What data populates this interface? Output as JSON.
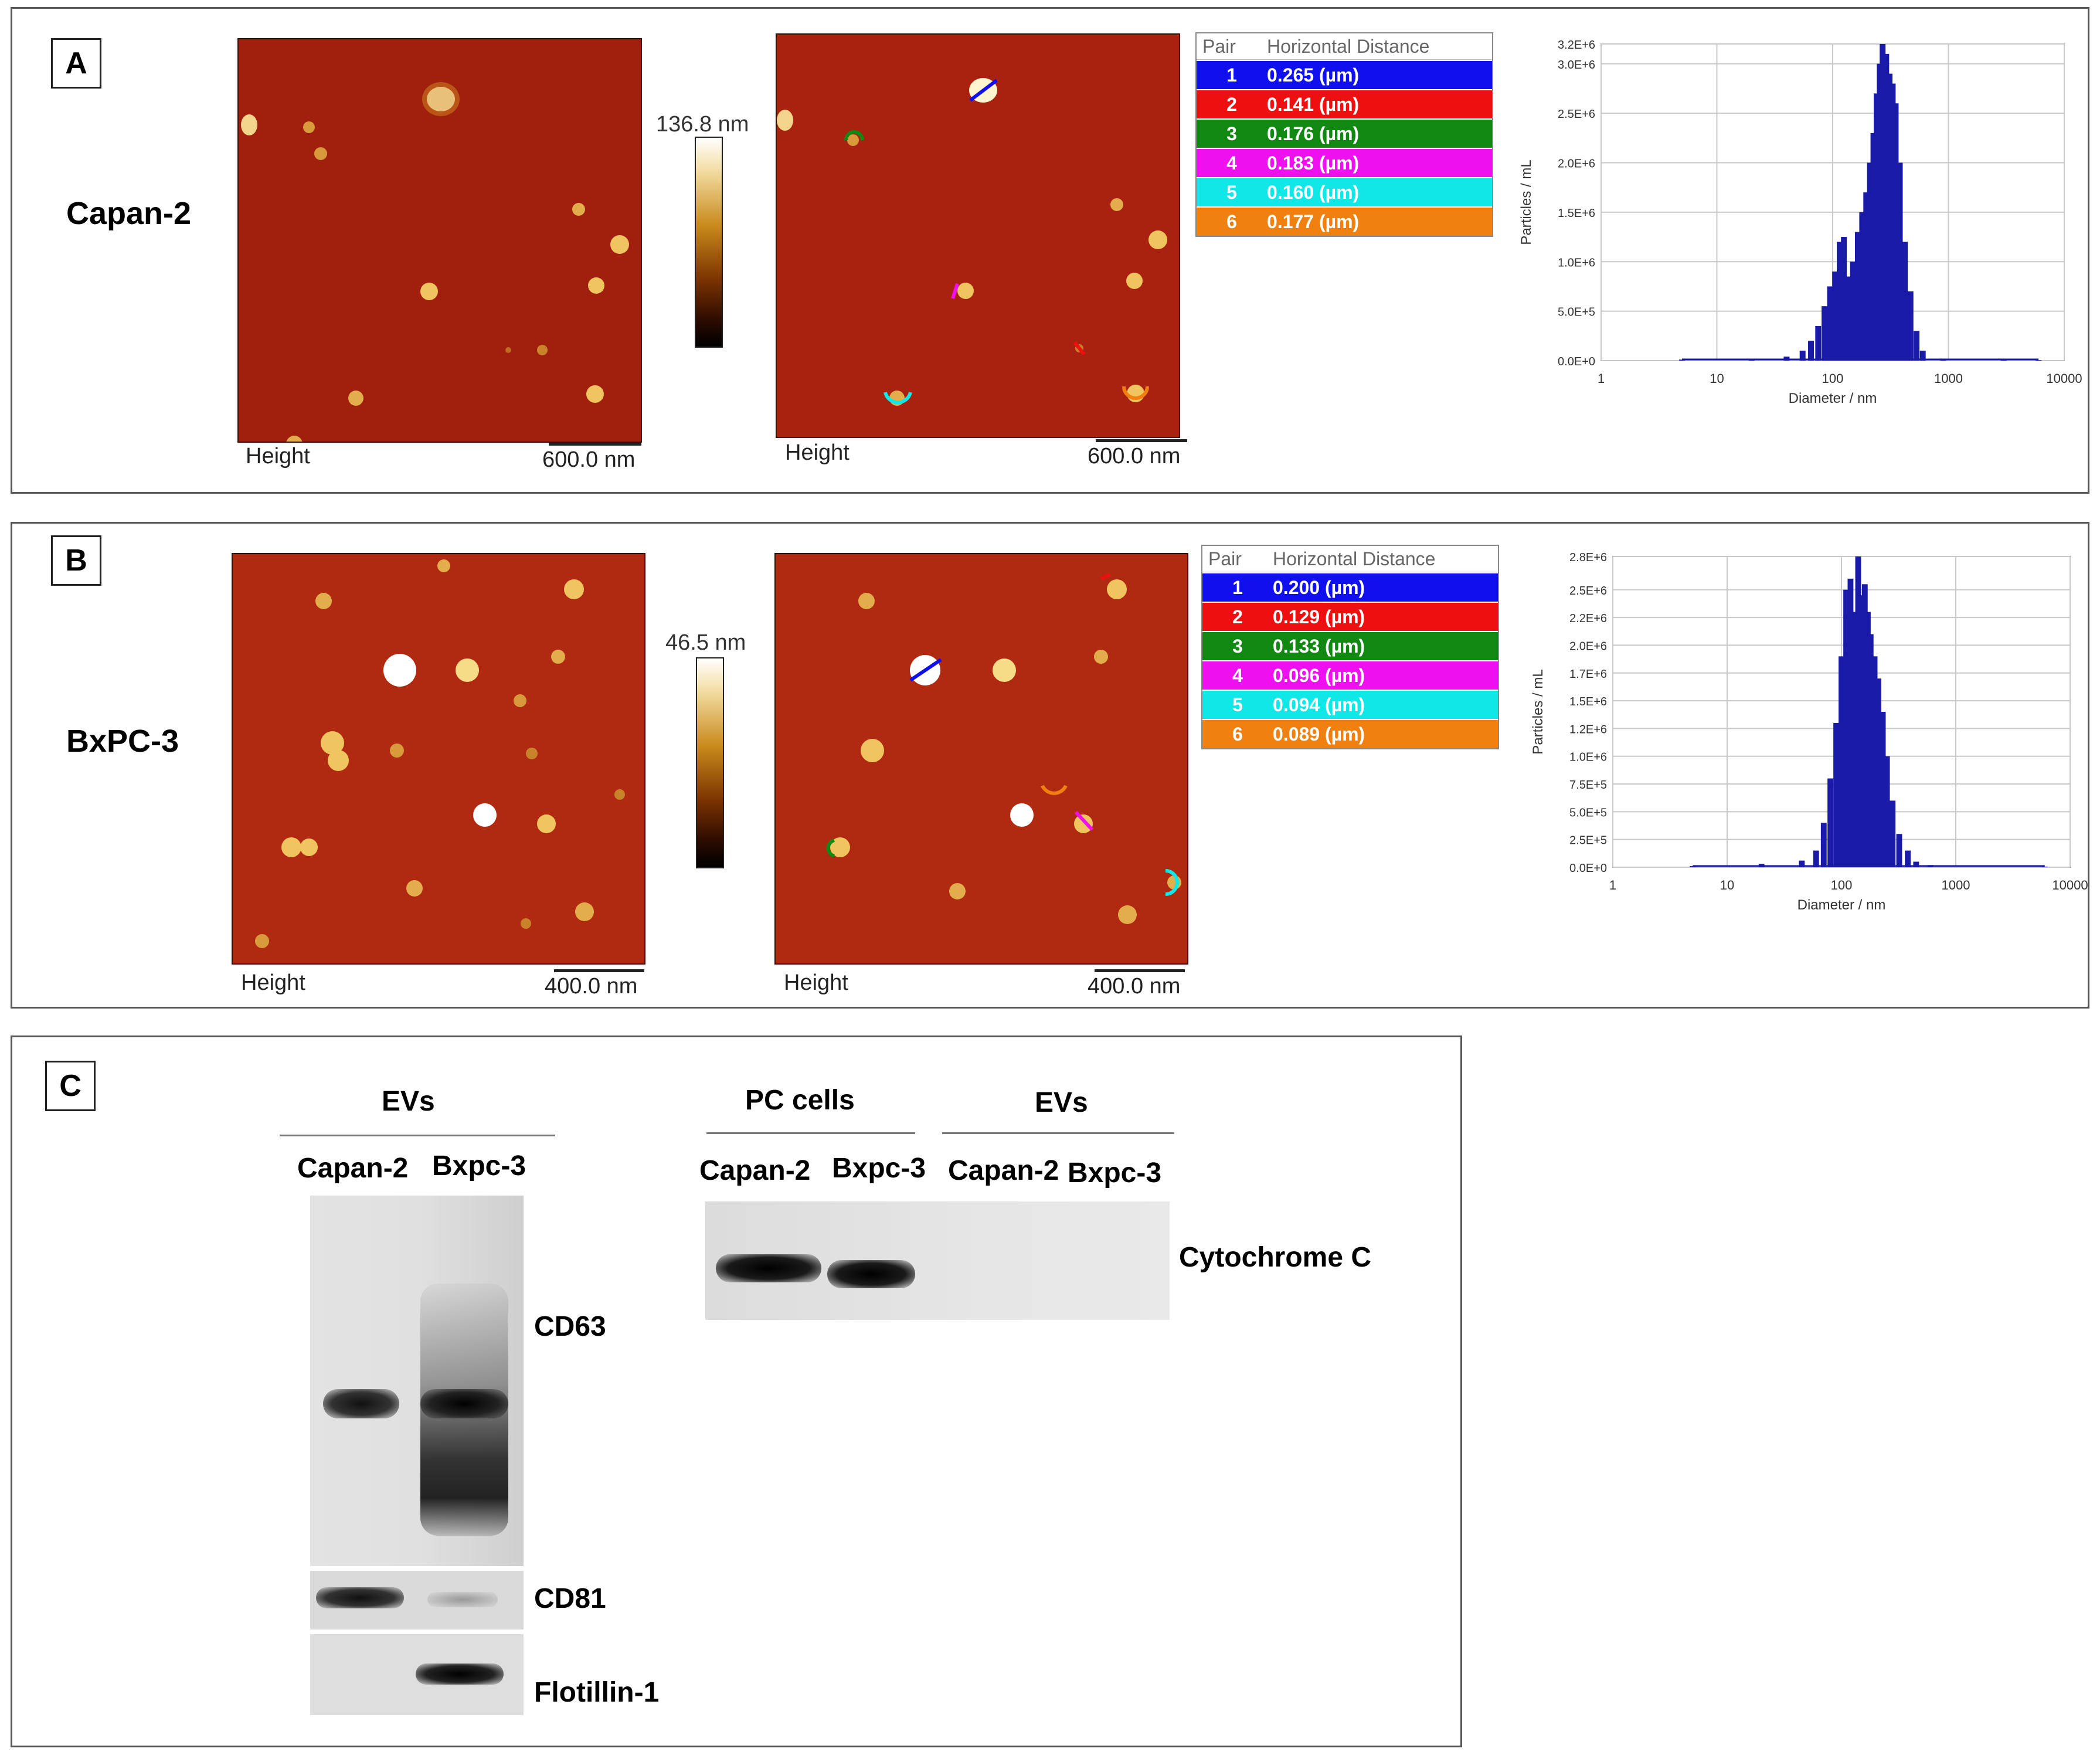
{
  "panel_a": {
    "letter": "A",
    "cell_line": "Capan-2",
    "image_caption": "Height",
    "scale_bar": "600.0 nm",
    "color_scale_max": "136.8 nm",
    "table": {
      "header_pair": "Pair",
      "header_distance": "Horizontal Distance",
      "rows": [
        {
          "pair": "1",
          "value": "0.265 (µm)",
          "color": "#1010ee"
        },
        {
          "pair": "2",
          "value": "0.141 (µm)",
          "color": "#ee1010"
        },
        {
          "pair": "3",
          "value": "0.176 (µm)",
          "color": "#118811"
        },
        {
          "pair": "4",
          "value": "0.183 (µm)",
          "color": "#ee10ee"
        },
        {
          "pair": "5",
          "value": "0.160 (µm)",
          "color": "#10e8e8"
        },
        {
          "pair": "6",
          "value": "0.177 (µm)",
          "color": "#f08010"
        }
      ]
    }
  },
  "panel_b": {
    "letter": "B",
    "cell_line": "BxPC-3",
    "image_caption": "Height",
    "scale_bar": "400.0 nm",
    "color_scale_max": "46.5 nm",
    "table": {
      "header_pair": "Pair",
      "header_distance": "Horizontal Distance",
      "rows": [
        {
          "pair": "1",
          "value": "0.200 (µm)",
          "color": "#1010ee"
        },
        {
          "pair": "2",
          "value": "0.129 (µm)",
          "color": "#ee1010"
        },
        {
          "pair": "3",
          "value": "0.133 (µm)",
          "color": "#118811"
        },
        {
          "pair": "4",
          "value": "0.096 (µm)",
          "color": "#ee10ee"
        },
        {
          "pair": "5",
          "value": "0.094 (µm)",
          "color": "#10e8e8"
        },
        {
          "pair": "6",
          "value": "0.089 (µm)",
          "color": "#f08010"
        }
      ]
    }
  },
  "panel_c": {
    "letter": "C",
    "left_group": "EVs",
    "left_lanes": [
      "Capan-2",
      "Bxpc-3"
    ],
    "right_groups": [
      "PC cells",
      "EVs"
    ],
    "right_lanes": [
      "Capan-2",
      "Bxpc-3",
      "Capan-2",
      "Bxpc-3"
    ],
    "markers": [
      "CD63",
      "CD81",
      "Flotillin-1"
    ],
    "right_marker": "Cytochrome C"
  },
  "chart_data": [
    {
      "type": "bar",
      "xlabel": "Diameter / nm",
      "ylabel": "Particles / mL",
      "x_scale": "log",
      "xlim": [
        1,
        10000
      ],
      "ylim": [
        0,
        3200000
      ],
      "x_ticks": [
        "1",
        "10",
        "100",
        "1000",
        "10000"
      ],
      "y_ticks": [
        "0.0E+0",
        "5.0E+5",
        "1.0E+6",
        "1.5E+6",
        "2.0E+6",
        "2.5E+6",
        "3.0E+6",
        "3.2E+6"
      ],
      "y_tick_values": [
        0,
        500000,
        1000000,
        1500000,
        2000000,
        2500000,
        3000000,
        3200000
      ],
      "color": "#1a1aa8",
      "x": [
        5,
        20,
        40,
        55,
        65,
        75,
        85,
        95,
        105,
        115,
        125,
        135,
        150,
        165,
        180,
        195,
        210,
        225,
        240,
        255,
        270,
        290,
        310,
        330,
        350,
        380,
        420,
        470,
        530,
        600,
        900,
        3000,
        6000
      ],
      "values": [
        10000,
        20000,
        40000,
        100000,
        200000,
        350000,
        550000,
        750000,
        900000,
        1200000,
        1250000,
        850000,
        1000000,
        1300000,
        1500000,
        1700000,
        2000000,
        2300000,
        2700000,
        3000000,
        3200000,
        3100000,
        2900000,
        2800000,
        2600000,
        2000000,
        1200000,
        700000,
        300000,
        100000,
        20000,
        10000,
        5000
      ]
    },
    {
      "type": "bar",
      "xlabel": "Diameter / nm",
      "ylabel": "Particles / mL",
      "x_scale": "log",
      "xlim": [
        1,
        10000
      ],
      "ylim": [
        0,
        2800000
      ],
      "x_ticks": [
        "1",
        "10",
        "100",
        "1000",
        "10000"
      ],
      "y_ticks": [
        "0.0E+0",
        "2.5E+5",
        "5.0E+5",
        "7.5E+5",
        "1.0E+6",
        "1.2E+6",
        "1.5E+6",
        "1.7E+6",
        "2.0E+6",
        "2.2E+6",
        "2.5E+6",
        "2.8E+6"
      ],
      "y_tick_values": [
        0,
        250000,
        500000,
        750000,
        1000000,
        1250000,
        1500000,
        1750000,
        2000000,
        2250000,
        2500000,
        2800000
      ],
      "color": "#1a1aa8",
      "x": [
        5,
        20,
        45,
        60,
        70,
        80,
        90,
        100,
        110,
        120,
        130,
        140,
        150,
        160,
        170,
        180,
        195,
        210,
        230,
        250,
        280,
        320,
        380,
        450,
        600,
        6000
      ],
      "values": [
        10000,
        30000,
        60000,
        150000,
        400000,
        800000,
        1300000,
        1900000,
        2500000,
        2600000,
        2300000,
        2800000,
        2450000,
        2550000,
        2300000,
        2100000,
        1900000,
        1700000,
        1400000,
        1000000,
        600000,
        300000,
        150000,
        50000,
        20000,
        5000
      ]
    }
  ]
}
